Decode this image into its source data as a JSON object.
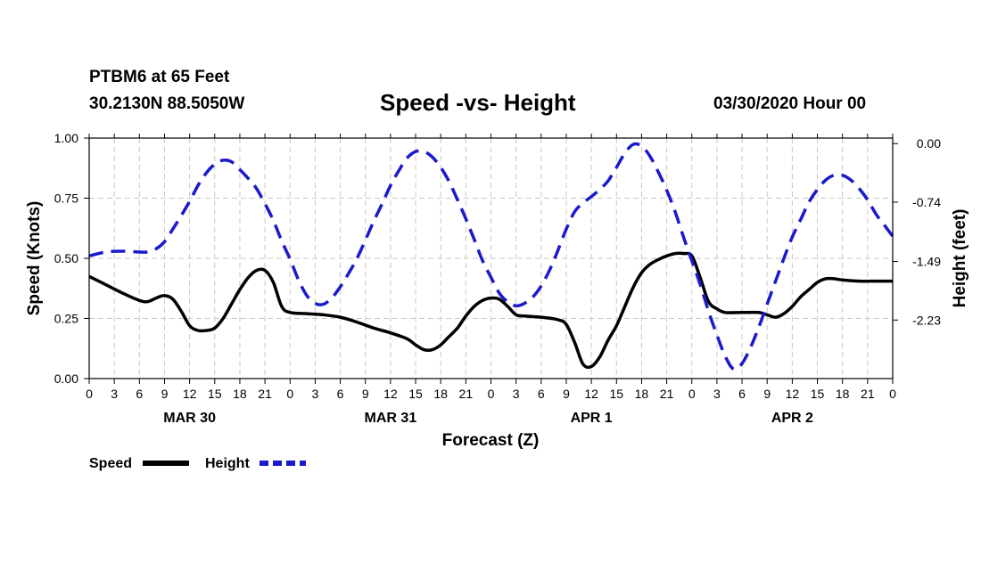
{
  "header": {
    "station": "PTBM6 at 65 Feet",
    "coords": "30.2130N 88.5050W",
    "title": "Speed -vs- Height",
    "datetime": "03/30/2020 Hour 00"
  },
  "colors": {
    "speed": "#000000",
    "height": "#1a1acc",
    "grid": "#c8c8c8"
  },
  "chart_data": {
    "type": "line",
    "title": "Speed -vs- Height",
    "xlabel": "Forecast (Z)",
    "ylabel": "Speed (Knots)",
    "y2label": "Height (feet)",
    "xlim": [
      0,
      96
    ],
    "ylim": [
      0,
      1
    ],
    "y2lim": [
      -2.97,
      0.07
    ],
    "x_ticks": [
      0,
      3,
      6,
      9,
      12,
      15,
      18,
      21,
      24,
      27,
      30,
      33,
      36,
      39,
      42,
      45,
      48,
      51,
      54,
      57,
      60,
      63,
      66,
      69,
      72,
      75,
      78,
      81,
      84,
      87,
      90,
      93,
      96
    ],
    "x_tick_labels": [
      "0",
      "3",
      "6",
      "9",
      "12",
      "15",
      "18",
      "21",
      "0",
      "3",
      "6",
      "9",
      "12",
      "15",
      "18",
      "21",
      "0",
      "3",
      "6",
      "9",
      "12",
      "15",
      "18",
      "21",
      "0",
      "3",
      "6",
      "9",
      "12",
      "15",
      "18",
      "21",
      "0"
    ],
    "day_labels": [
      {
        "x": 12,
        "label": "MAR 30"
      },
      {
        "x": 36,
        "label": "MAR 31"
      },
      {
        "x": 60,
        "label": "APR 1"
      },
      {
        "x": 84,
        "label": "APR 2"
      }
    ],
    "y_ticks": [
      0,
      0.25,
      0.5,
      0.75,
      1
    ],
    "y_tick_labels": [
      "0.00",
      "0.25",
      "0.50",
      "0.75",
      "1.00"
    ],
    "y2_ticks": [
      0,
      -0.74,
      -1.49,
      -2.23
    ],
    "y2_tick_labels": [
      "0.00",
      "-0.74",
      "-1.49",
      "-2.23"
    ],
    "series": [
      {
        "name": "Speed",
        "axis": "left",
        "style": "solid",
        "points": [
          [
            0,
            0.425
          ],
          [
            2,
            0.39
          ],
          [
            4,
            0.355
          ],
          [
            6,
            0.325
          ],
          [
            7,
            0.32
          ],
          [
            8,
            0.335
          ],
          [
            9,
            0.345
          ],
          [
            10,
            0.33
          ],
          [
            11,
            0.28
          ],
          [
            12,
            0.22
          ],
          [
            13,
            0.2
          ],
          [
            14,
            0.2
          ],
          [
            15,
            0.21
          ],
          [
            16,
            0.25
          ],
          [
            17,
            0.31
          ],
          [
            18,
            0.37
          ],
          [
            19,
            0.42
          ],
          [
            20,
            0.45
          ],
          [
            21,
            0.45
          ],
          [
            22,
            0.4
          ],
          [
            23,
            0.3
          ],
          [
            24,
            0.275
          ],
          [
            26,
            0.27
          ],
          [
            28,
            0.265
          ],
          [
            30,
            0.255
          ],
          [
            32,
            0.235
          ],
          [
            34,
            0.21
          ],
          [
            36,
            0.19
          ],
          [
            38,
            0.165
          ],
          [
            39,
            0.14
          ],
          [
            40,
            0.12
          ],
          [
            41,
            0.12
          ],
          [
            42,
            0.14
          ],
          [
            43,
            0.175
          ],
          [
            44,
            0.21
          ],
          [
            45,
            0.26
          ],
          [
            46,
            0.3
          ],
          [
            47,
            0.325
          ],
          [
            48,
            0.335
          ],
          [
            49,
            0.33
          ],
          [
            50,
            0.3
          ],
          [
            51,
            0.265
          ],
          [
            52,
            0.26
          ],
          [
            54,
            0.255
          ],
          [
            56,
            0.245
          ],
          [
            57,
            0.225
          ],
          [
            58,
            0.15
          ],
          [
            59,
            0.06
          ],
          [
            60,
            0.05
          ],
          [
            61,
            0.09
          ],
          [
            62,
            0.16
          ],
          [
            63,
            0.22
          ],
          [
            64,
            0.3
          ],
          [
            65,
            0.38
          ],
          [
            66,
            0.44
          ],
          [
            67,
            0.475
          ],
          [
            68,
            0.495
          ],
          [
            69,
            0.51
          ],
          [
            70,
            0.52
          ],
          [
            71,
            0.52
          ],
          [
            72,
            0.51
          ],
          [
            73,
            0.42
          ],
          [
            74,
            0.32
          ],
          [
            75,
            0.29
          ],
          [
            76,
            0.275
          ],
          [
            78,
            0.275
          ],
          [
            80,
            0.275
          ],
          [
            81,
            0.265
          ],
          [
            82,
            0.255
          ],
          [
            83,
            0.27
          ],
          [
            84,
            0.3
          ],
          [
            85,
            0.34
          ],
          [
            86,
            0.37
          ],
          [
            87,
            0.4
          ],
          [
            88,
            0.415
          ],
          [
            89,
            0.415
          ],
          [
            90,
            0.41
          ],
          [
            92,
            0.405
          ],
          [
            94,
            0.405
          ],
          [
            96,
            0.405
          ]
        ]
      },
      {
        "name": "Height",
        "axis": "right",
        "style": "dashed",
        "points": [
          [
            0,
            -1.42
          ],
          [
            2,
            -1.37
          ],
          [
            4,
            -1.36
          ],
          [
            6,
            -1.37
          ],
          [
            7,
            -1.37
          ],
          [
            8,
            -1.33
          ],
          [
            9,
            -1.24
          ],
          [
            10,
            -1.08
          ],
          [
            11,
            -0.91
          ],
          [
            12,
            -0.73
          ],
          [
            13,
            -0.53
          ],
          [
            14,
            -0.37
          ],
          [
            15,
            -0.26
          ],
          [
            16,
            -0.21
          ],
          [
            17,
            -0.23
          ],
          [
            18,
            -0.33
          ],
          [
            19,
            -0.44
          ],
          [
            20,
            -0.57
          ],
          [
            21,
            -0.76
          ],
          [
            22,
            -0.97
          ],
          [
            23,
            -1.23
          ],
          [
            24,
            -1.46
          ],
          [
            25,
            -1.72
          ],
          [
            26,
            -1.92
          ],
          [
            27,
            -2.02
          ],
          [
            28,
            -2.03
          ],
          [
            29,
            -1.95
          ],
          [
            30,
            -1.81
          ],
          [
            31,
            -1.64
          ],
          [
            32,
            -1.45
          ],
          [
            33,
            -1.22
          ],
          [
            34,
            -0.98
          ],
          [
            35,
            -0.76
          ],
          [
            36,
            -0.53
          ],
          [
            37,
            -0.34
          ],
          [
            38,
            -0.18
          ],
          [
            39,
            -0.1
          ],
          [
            40,
            -0.1
          ],
          [
            41,
            -0.17
          ],
          [
            42,
            -0.3
          ],
          [
            43,
            -0.48
          ],
          [
            44,
            -0.71
          ],
          [
            45,
            -0.95
          ],
          [
            46,
            -1.21
          ],
          [
            47,
            -1.48
          ],
          [
            48,
            -1.69
          ],
          [
            49,
            -1.89
          ],
          [
            50,
            -2.0
          ],
          [
            51,
            -2.05
          ],
          [
            52,
            -2.02
          ],
          [
            53,
            -1.94
          ],
          [
            54,
            -1.8
          ],
          [
            55,
            -1.6
          ],
          [
            56,
            -1.35
          ],
          [
            57,
            -1.08
          ],
          [
            58,
            -0.86
          ],
          [
            59,
            -0.75
          ],
          [
            60,
            -0.67
          ],
          [
            61,
            -0.58
          ],
          [
            62,
            -0.47
          ],
          [
            63,
            -0.3
          ],
          [
            64,
            -0.12
          ],
          [
            65,
            -0.01
          ],
          [
            66,
            -0.03
          ],
          [
            67,
            -0.16
          ],
          [
            68,
            -0.36
          ],
          [
            69,
            -0.59
          ],
          [
            70,
            -0.86
          ],
          [
            71,
            -1.18
          ],
          [
            72,
            -1.48
          ],
          [
            73,
            -1.78
          ],
          [
            74,
            -2.12
          ],
          [
            75,
            -2.42
          ],
          [
            76,
            -2.69
          ],
          [
            77,
            -2.85
          ],
          [
            78,
            -2.78
          ],
          [
            79,
            -2.58
          ],
          [
            80,
            -2.32
          ],
          [
            81,
            -2.03
          ],
          [
            82,
            -1.74
          ],
          [
            83,
            -1.45
          ],
          [
            84,
            -1.18
          ],
          [
            85,
            -0.96
          ],
          [
            86,
            -0.74
          ],
          [
            87,
            -0.58
          ],
          [
            88,
            -0.46
          ],
          [
            89,
            -0.4
          ],
          [
            90,
            -0.4
          ],
          [
            91,
            -0.46
          ],
          [
            92,
            -0.57
          ],
          [
            93,
            -0.71
          ],
          [
            94,
            -0.89
          ],
          [
            95,
            -1.03
          ],
          [
            96,
            -1.17
          ]
        ]
      }
    ],
    "legend": [
      {
        "label": "Speed",
        "style": "solid"
      },
      {
        "label": "Height",
        "style": "dashed"
      }
    ]
  }
}
